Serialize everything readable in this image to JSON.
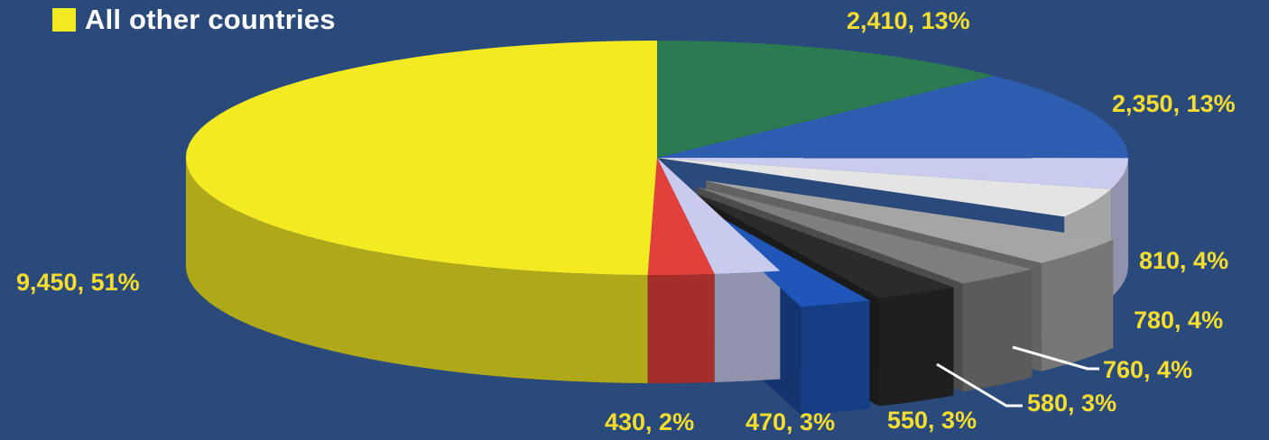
{
  "legend": {
    "label": "All other countries",
    "color": "#f3ea22"
  },
  "chart_data": {
    "type": "pie",
    "title": "",
    "exploded_series": [
      4,
      5,
      6,
      7
    ],
    "slices": [
      {
        "label": "2,410, 13%",
        "value": 2410,
        "percent": 13,
        "color": "#2c7a52"
      },
      {
        "label": "2,350, 13%",
        "value": 2350,
        "percent": 13,
        "color": "#2e5cae"
      },
      {
        "label": "810, 4%",
        "value": 810,
        "percent": 4,
        "color": "#c9ccef"
      },
      {
        "label": "780, 4%",
        "value": 780,
        "percent": 4,
        "color": "#e4e4e4"
      },
      {
        "label": "760, 4%",
        "value": 760,
        "percent": 4,
        "color": "#a5a5a5"
      },
      {
        "label": "580, 3%",
        "value": 580,
        "percent": 3,
        "color": "#7e7e7e"
      },
      {
        "label": "550, 3%",
        "value": 550,
        "percent": 3,
        "color": "#2b2b2b"
      },
      {
        "label": "470, 3%",
        "value": 470,
        "percent": 3,
        "color": "#1f56b8"
      },
      {
        "label": "430, 2%",
        "value": 430,
        "percent": 2,
        "color": "#c9cbee"
      },
      {
        "label": "",
        "value": 430,
        "percent": 2,
        "color": "#e2403b"
      },
      {
        "label": "9,450, 51%",
        "value": 9450,
        "percent": 51,
        "color": "#f3ea22",
        "legend": "All other countries"
      }
    ],
    "data_labels": [
      "2,410, 13%",
      "2,350, 13%",
      "810, 4%",
      "780, 4%",
      "760, 4%",
      "580, 3%",
      "550, 3%",
      "470, 3%",
      "430, 2%",
      "9,450, 51%"
    ]
  }
}
